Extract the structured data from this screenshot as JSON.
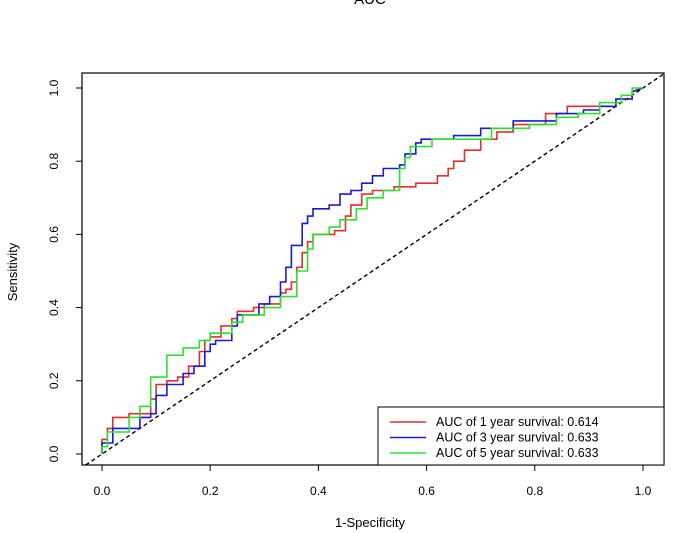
{
  "chart_data": {
    "type": "line",
    "title": "AUC",
    "xlabel": "1-Specificity",
    "ylabel": "Sensitivity",
    "xlim": [
      0,
      1
    ],
    "ylim": [
      0,
      1
    ],
    "x_ticks": [
      0.0,
      0.2,
      0.4,
      0.6,
      0.8,
      1.0
    ],
    "y_ticks": [
      0.0,
      0.2,
      0.4,
      0.6,
      0.8,
      1.0
    ],
    "x_tick_labels": [
      "0.0",
      "0.2",
      "0.4",
      "0.6",
      "0.8",
      "1.0"
    ],
    "y_tick_labels": [
      "0.0",
      "0.2",
      "0.4",
      "0.6",
      "0.8",
      "1.0"
    ],
    "grid": false,
    "legend_position": "bottom-right",
    "reference_line": {
      "x": [
        0,
        1
      ],
      "y": [
        0,
        1
      ],
      "color": "#000000",
      "style": "dashed"
    },
    "series": [
      {
        "name": "AUC of 1 year survival: 0.614",
        "color": "#e0302e",
        "x": [
          0,
          0,
          0.01,
          0.01,
          0.02,
          0.02,
          0.05,
          0.05,
          0.09,
          0.09,
          0.1,
          0.1,
          0.12,
          0.12,
          0.14,
          0.14,
          0.16,
          0.16,
          0.18,
          0.18,
          0.19,
          0.19,
          0.2,
          0.2,
          0.22,
          0.22,
          0.24,
          0.24,
          0.25,
          0.25,
          0.28,
          0.28,
          0.3,
          0.3,
          0.33,
          0.33,
          0.34,
          0.34,
          0.35,
          0.35,
          0.36,
          0.36,
          0.37,
          0.37,
          0.38,
          0.38,
          0.39,
          0.39,
          0.4,
          0.4,
          0.43,
          0.43,
          0.45,
          0.45,
          0.46,
          0.46,
          0.48,
          0.48,
          0.5,
          0.5,
          0.54,
          0.54,
          0.58,
          0.58,
          0.62,
          0.62,
          0.64,
          0.64,
          0.65,
          0.65,
          0.67,
          0.67,
          0.7,
          0.7,
          0.73,
          0.73,
          0.76,
          0.76,
          0.78,
          0.78,
          0.82,
          0.82,
          0.86,
          0.86,
          0.95,
          0.95,
          0.98,
          0.98,
          1.0
        ],
        "y": [
          0,
          0.04,
          0.04,
          0.07,
          0.07,
          0.1,
          0.1,
          0.11,
          0.11,
          0.15,
          0.15,
          0.19,
          0.19,
          0.2,
          0.2,
          0.21,
          0.21,
          0.24,
          0.24,
          0.28,
          0.28,
          0.31,
          0.31,
          0.32,
          0.32,
          0.35,
          0.35,
          0.37,
          0.37,
          0.39,
          0.39,
          0.4,
          0.4,
          0.41,
          0.41,
          0.44,
          0.44,
          0.45,
          0.45,
          0.47,
          0.47,
          0.51,
          0.51,
          0.55,
          0.55,
          0.58,
          0.58,
          0.6,
          0.6,
          0.6,
          0.6,
          0.61,
          0.61,
          0.65,
          0.65,
          0.68,
          0.68,
          0.71,
          0.71,
          0.72,
          0.72,
          0.73,
          0.73,
          0.74,
          0.74,
          0.76,
          0.76,
          0.78,
          0.78,
          0.8,
          0.8,
          0.83,
          0.83,
          0.86,
          0.86,
          0.88,
          0.88,
          0.9,
          0.9,
          0.9,
          0.9,
          0.93,
          0.93,
          0.95,
          0.95,
          0.97,
          0.97,
          0.99,
          1.0
        ]
      },
      {
        "name": "AUC of 3 year survival: 0.633",
        "color": "#1a1ad0",
        "x": [
          0,
          0,
          0.02,
          0.02,
          0.07,
          0.07,
          0.09,
          0.09,
          0.1,
          0.1,
          0.12,
          0.12,
          0.15,
          0.15,
          0.17,
          0.17,
          0.19,
          0.19,
          0.2,
          0.2,
          0.21,
          0.21,
          0.24,
          0.24,
          0.25,
          0.25,
          0.29,
          0.29,
          0.31,
          0.31,
          0.33,
          0.33,
          0.34,
          0.34,
          0.35,
          0.35,
          0.37,
          0.37,
          0.38,
          0.38,
          0.39,
          0.39,
          0.42,
          0.42,
          0.44,
          0.44,
          0.46,
          0.46,
          0.48,
          0.48,
          0.5,
          0.5,
          0.52,
          0.52,
          0.55,
          0.55,
          0.56,
          0.56,
          0.58,
          0.58,
          0.59,
          0.59,
          0.65,
          0.65,
          0.7,
          0.7,
          0.72,
          0.72,
          0.76,
          0.76,
          0.8,
          0.8,
          0.84,
          0.84,
          0.89,
          0.89,
          0.92,
          0.92,
          0.95,
          0.95,
          0.98,
          0.98,
          1.0
        ],
        "y": [
          0,
          0.03,
          0.03,
          0.07,
          0.07,
          0.1,
          0.1,
          0.11,
          0.11,
          0.16,
          0.16,
          0.19,
          0.19,
          0.22,
          0.22,
          0.24,
          0.24,
          0.28,
          0.28,
          0.3,
          0.3,
          0.31,
          0.31,
          0.35,
          0.35,
          0.38,
          0.38,
          0.41,
          0.41,
          0.43,
          0.43,
          0.47,
          0.47,
          0.51,
          0.51,
          0.57,
          0.57,
          0.63,
          0.63,
          0.65,
          0.65,
          0.67,
          0.67,
          0.68,
          0.68,
          0.71,
          0.71,
          0.72,
          0.72,
          0.74,
          0.74,
          0.76,
          0.76,
          0.78,
          0.78,
          0.79,
          0.79,
          0.82,
          0.82,
          0.85,
          0.85,
          0.86,
          0.86,
          0.87,
          0.87,
          0.89,
          0.89,
          0.89,
          0.89,
          0.91,
          0.91,
          0.91,
          0.91,
          0.93,
          0.93,
          0.94,
          0.94,
          0.95,
          0.95,
          0.97,
          0.97,
          0.99,
          1.0
        ]
      },
      {
        "name": "AUC of 5 year survival: 0.633",
        "color": "#2ee02e",
        "x": [
          0,
          0,
          0.01,
          0.01,
          0.05,
          0.05,
          0.07,
          0.07,
          0.09,
          0.09,
          0.12,
          0.12,
          0.15,
          0.15,
          0.18,
          0.18,
          0.2,
          0.2,
          0.24,
          0.24,
          0.26,
          0.26,
          0.3,
          0.3,
          0.33,
          0.33,
          0.36,
          0.36,
          0.38,
          0.38,
          0.39,
          0.39,
          0.42,
          0.42,
          0.44,
          0.44,
          0.47,
          0.47,
          0.49,
          0.49,
          0.52,
          0.52,
          0.55,
          0.55,
          0.56,
          0.56,
          0.57,
          0.57,
          0.61,
          0.61,
          0.66,
          0.66,
          0.72,
          0.72,
          0.79,
          0.79,
          0.84,
          0.84,
          0.88,
          0.88,
          0.92,
          0.92,
          0.96,
          0.96,
          0.98,
          0.98,
          1.0
        ],
        "y": [
          0,
          0.02,
          0.02,
          0.06,
          0.06,
          0.1,
          0.1,
          0.13,
          0.13,
          0.21,
          0.21,
          0.27,
          0.27,
          0.29,
          0.29,
          0.31,
          0.31,
          0.33,
          0.33,
          0.36,
          0.36,
          0.38,
          0.38,
          0.4,
          0.4,
          0.43,
          0.43,
          0.5,
          0.5,
          0.56,
          0.56,
          0.6,
          0.6,
          0.62,
          0.62,
          0.64,
          0.64,
          0.67,
          0.67,
          0.7,
          0.7,
          0.72,
          0.72,
          0.78,
          0.78,
          0.81,
          0.81,
          0.84,
          0.84,
          0.86,
          0.86,
          0.86,
          0.86,
          0.89,
          0.89,
          0.9,
          0.9,
          0.92,
          0.92,
          0.93,
          0.93,
          0.96,
          0.96,
          0.98,
          0.98,
          1.0,
          1.0
        ]
      }
    ]
  }
}
